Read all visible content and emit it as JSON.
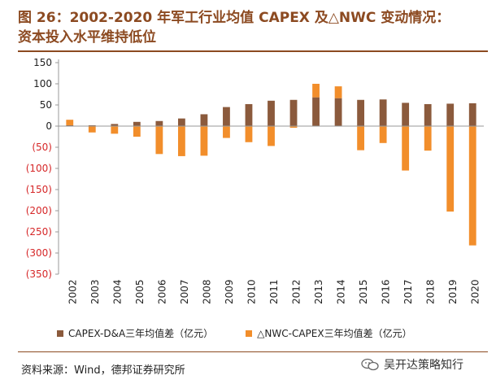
{
  "title": {
    "line1": "图 26：2002-2020 年军工行业均值 CAPEX 及△NWC 变动情况：",
    "line2": "资本投入水平维持低位"
  },
  "chart_data": {
    "type": "bar",
    "title": "2002-2020 年军工行业均值 CAPEX 及△NWC 变动情况：资本投入水平维持低位",
    "xlabel": "",
    "ylabel": "",
    "ylim": [
      -350,
      150
    ],
    "yticks": [
      150,
      100,
      50,
      0,
      -50,
      -100,
      -150,
      -200,
      -250,
      -300,
      -350
    ],
    "ytick_labels": [
      "150",
      "100",
      "50",
      "0",
      "(50)",
      "(100)",
      "(150)",
      "(200)",
      "(250)",
      "(300)",
      "(350)"
    ],
    "categories": [
      "2002",
      "2003",
      "2004",
      "2005",
      "2006",
      "2007",
      "2008",
      "2009",
      "2010",
      "2011",
      "2012",
      "2013",
      "2014",
      "2015",
      "2016",
      "2017",
      "2018",
      "2019",
      "2020"
    ],
    "stacked": true,
    "series": [
      {
        "name": "CAPEX-D&A三年均值差（亿元）",
        "color": "#8b5a3c",
        "values": [
          2,
          2,
          5,
          10,
          12,
          18,
          28,
          45,
          52,
          60,
          62,
          68,
          66,
          62,
          63,
          55,
          52,
          53,
          54
        ]
      },
      {
        "name": "△NWC-CAPEX三年均值差（亿元）",
        "color": "#f28e2b",
        "values": [
          13,
          -15,
          -18,
          -25,
          -66,
          -71,
          -70,
          -28,
          -38,
          -47,
          -4,
          32,
          28,
          -57,
          -40,
          -105,
          -58,
          -202,
          -282
        ]
      }
    ],
    "legend_position": "bottom"
  },
  "source": "资料来源：Wind，德邦证券研究所",
  "watermark": "吴开达策略知行"
}
